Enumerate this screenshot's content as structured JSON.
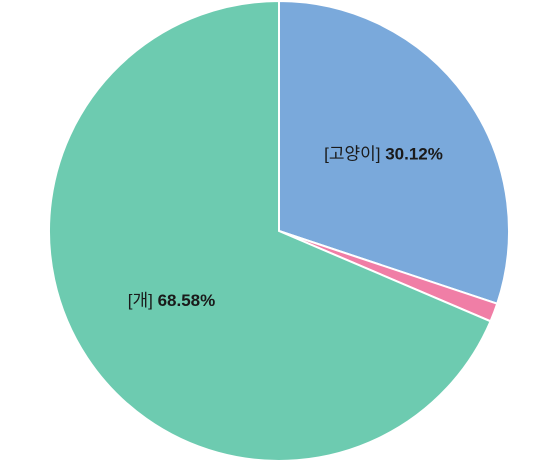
{
  "chart_data": {
    "type": "pie",
    "start_angle_deg": 0,
    "direction": "clockwise",
    "slices": [
      {
        "category": "고양이",
        "label": "[고양이]",
        "value": 30.12,
        "percent_text": "30.12%",
        "color": "#7aa9db",
        "show_label": true
      },
      {
        "category": "",
        "label": "",
        "value": 1.3,
        "percent_text": "",
        "color": "#f07ea6",
        "show_label": false
      },
      {
        "category": "개",
        "label": "[개]",
        "value": 68.58,
        "percent_text": "68.58%",
        "color": "#6dcbb0",
        "show_label": true
      }
    ],
    "legend": "none"
  }
}
